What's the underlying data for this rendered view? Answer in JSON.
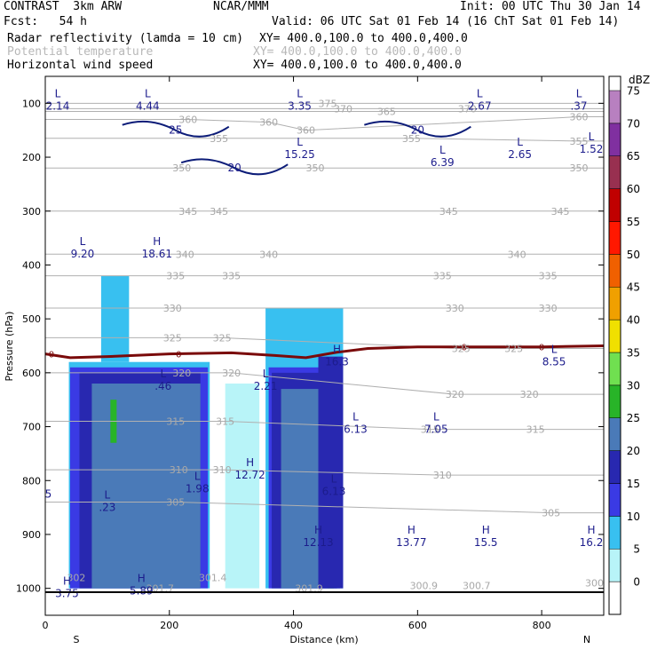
{
  "header": {
    "model_line": "CONTRAST  3km ARW",
    "org": "NCAR/MMM",
    "init": "Init: 00 UTC Thu 30 Jan 14",
    "fcst": "Fcst:   54 h",
    "valid": "Valid: 06 UTC Sat 01 Feb 14 (16 ChT Sat 01 Feb 14)",
    "fields": [
      {
        "name": "Radar reflectivity (lamda = 10 cm)",
        "xy": "XY= 400.0,100.0 to 400.0,400.0",
        "color": "#000000"
      },
      {
        "name": "Potential temperature",
        "xy": "XY= 400.0,100.0 to 400.0,400.0",
        "color": "#b8b8b8"
      },
      {
        "name": "Horizontal wind speed",
        "xy": "XY= 400.0,100.0 to 400.0,400.0",
        "color": "#000000"
      }
    ]
  },
  "chart_data": {
    "type": "heatmap",
    "xlabel": "Distance (km)",
    "ylabel": "Pressure (hPa)",
    "xlim": [
      0,
      900
    ],
    "ylim": [
      1050,
      50
    ],
    "x_ticks": [
      0,
      200,
      400,
      600,
      800
    ],
    "y_ticks": [
      100,
      200,
      300,
      400,
      500,
      600,
      700,
      800,
      900,
      1000
    ],
    "x_end_labels": {
      "left": "S",
      "right": "N"
    },
    "colorbar": {
      "unit": "dBZ",
      "levels": [
        0,
        5,
        10,
        15,
        20,
        25,
        30,
        35,
        40,
        45,
        50,
        55,
        60,
        65,
        70,
        75
      ],
      "colors": [
        "#ffffff",
        "#b8f4f8",
        "#38c0f0",
        "#3a3ae4",
        "#2828b0",
        "#4a7ab8",
        "#28b428",
        "#70e050",
        "#f0e000",
        "#f0a000",
        "#f06000",
        "#ff1800",
        "#c00000",
        "#983050",
        "#8030a0",
        "#b880c0"
      ]
    },
    "reflectivity_regions": [
      {
        "x0": 38,
        "x1": 265,
        "p_top": 580,
        "p_bot": 1000,
        "dbz": 10
      },
      {
        "x0": 40,
        "x1": 262,
        "p_top": 590,
        "p_bot": 1000,
        "dbz": 15
      },
      {
        "x0": 55,
        "x1": 250,
        "p_top": 600,
        "p_bot": 1000,
        "dbz": 20
      },
      {
        "x0": 75,
        "x1": 250,
        "p_top": 620,
        "p_bot": 1000,
        "dbz": 25
      },
      {
        "x0": 105,
        "x1": 115,
        "p_top": 650,
        "p_bot": 730,
        "dbz": 30
      },
      {
        "x0": 90,
        "x1": 135,
        "p_top": 420,
        "p_bot": 580,
        "dbz": 10
      },
      {
        "x0": 290,
        "x1": 345,
        "p_top": 620,
        "p_bot": 1000,
        "dbz": 5
      },
      {
        "x0": 355,
        "x1": 480,
        "p_top": 480,
        "p_bot": 1000,
        "dbz": 10
      },
      {
        "x0": 360,
        "x1": 475,
        "p_top": 590,
        "p_bot": 1000,
        "dbz": 15
      },
      {
        "x0": 365,
        "x1": 470,
        "p_top": 600,
        "p_bot": 1000,
        "dbz": 20
      },
      {
        "x0": 380,
        "x1": 455,
        "p_top": 630,
        "p_bot": 1000,
        "dbz": 25
      },
      {
        "x0": 455,
        "x1": 465,
        "p_top": 630,
        "p_bot": 1000,
        "dbz": 30
      },
      {
        "x0": 440,
        "x1": 480,
        "p_top": 570,
        "p_bot": 1000,
        "dbz": 20
      }
    ],
    "freezing_level": [
      [
        0,
        565
      ],
      [
        40,
        572
      ],
      [
        100,
        570
      ],
      [
        200,
        565
      ],
      [
        300,
        563
      ],
      [
        370,
        568
      ],
      [
        420,
        572
      ],
      [
        470,
        562
      ],
      [
        520,
        555
      ],
      [
        600,
        552
      ],
      [
        700,
        552
      ],
      [
        800,
        552
      ],
      [
        900,
        550
      ]
    ],
    "theta_labels": [
      {
        "x": 480,
        "p": 110,
        "text": "370"
      },
      {
        "x": 550,
        "p": 115,
        "text": "365"
      },
      {
        "x": 680,
        "p": 110,
        "text": "370"
      },
      {
        "x": 860,
        "p": 125,
        "text": "360"
      },
      {
        "x": 455,
        "p": 100,
        "text": "375"
      },
      {
        "x": 230,
        "p": 130,
        "text": "360"
      },
      {
        "x": 360,
        "p": 135,
        "text": "360"
      },
      {
        "x": 420,
        "p": 150,
        "text": "360"
      },
      {
        "x": 280,
        "p": 165,
        "text": "355"
      },
      {
        "x": 590,
        "p": 165,
        "text": "355"
      },
      {
        "x": 860,
        "p": 170,
        "text": "355"
      },
      {
        "x": 220,
        "p": 220,
        "text": "350"
      },
      {
        "x": 435,
        "p": 220,
        "text": "350"
      },
      {
        "x": 860,
        "p": 220,
        "text": "350"
      },
      {
        "x": 230,
        "p": 300,
        "text": "345"
      },
      {
        "x": 280,
        "p": 300,
        "text": "345"
      },
      {
        "x": 650,
        "p": 300,
        "text": "345"
      },
      {
        "x": 830,
        "p": 300,
        "text": "345"
      },
      {
        "x": 225,
        "p": 380,
        "text": "340"
      },
      {
        "x": 360,
        "p": 380,
        "text": "340"
      },
      {
        "x": 760,
        "p": 380,
        "text": "340"
      },
      {
        "x": 210,
        "p": 420,
        "text": "335"
      },
      {
        "x": 300,
        "p": 420,
        "text": "335"
      },
      {
        "x": 640,
        "p": 420,
        "text": "335"
      },
      {
        "x": 810,
        "p": 420,
        "text": "335"
      },
      {
        "x": 205,
        "p": 480,
        "text": "330"
      },
      {
        "x": 660,
        "p": 480,
        "text": "330"
      },
      {
        "x": 810,
        "p": 480,
        "text": "330"
      },
      {
        "x": 205,
        "p": 535,
        "text": "325"
      },
      {
        "x": 285,
        "p": 535,
        "text": "325"
      },
      {
        "x": 670,
        "p": 555,
        "text": "325"
      },
      {
        "x": 755,
        "p": 555,
        "text": "325"
      },
      {
        "x": 220,
        "p": 600,
        "text": "320"
      },
      {
        "x": 300,
        "p": 600,
        "text": "320"
      },
      {
        "x": 660,
        "p": 640,
        "text": "320"
      },
      {
        "x": 780,
        "p": 640,
        "text": "320"
      },
      {
        "x": 210,
        "p": 690,
        "text": "315"
      },
      {
        "x": 290,
        "p": 690,
        "text": "315"
      },
      {
        "x": 620,
        "p": 705,
        "text": "315"
      },
      {
        "x": 790,
        "p": 705,
        "text": "315"
      },
      {
        "x": 215,
        "p": 780,
        "text": "310"
      },
      {
        "x": 285,
        "p": 780,
        "text": "310"
      },
      {
        "x": 640,
        "p": 790,
        "text": "310"
      },
      {
        "x": 210,
        "p": 840,
        "text": "305"
      },
      {
        "x": 815,
        "p": 860,
        "text": "305"
      },
      {
        "x": 50,
        "p": 980,
        "text": "302"
      },
      {
        "x": 270,
        "p": 980,
        "text": "301.4"
      },
      {
        "x": 185,
        "p": 1000,
        "text": "301.7"
      },
      {
        "x": 425,
        "p": 1000,
        "text": "301.9"
      },
      {
        "x": 610,
        "p": 995,
        "text": "300.9"
      },
      {
        "x": 695,
        "p": 995,
        "text": "300.7"
      },
      {
        "x": 885,
        "p": 990,
        "text": "300"
      }
    ],
    "extrema": [
      {
        "x": 20,
        "p": 95,
        "kind": "L",
        "value": "2.14"
      },
      {
        "x": 165,
        "p": 95,
        "kind": "L",
        "value": "4.44"
      },
      {
        "x": 410,
        "p": 95,
        "kind": "L",
        "value": "3.35"
      },
      {
        "x": 700,
        "p": 95,
        "kind": "L",
        "value": "2.67"
      },
      {
        "x": 860,
        "p": 95,
        "kind": "L",
        "value": ".37"
      },
      {
        "x": 410,
        "p": 185,
        "kind": "L",
        "value": "15.25"
      },
      {
        "x": 640,
        "p": 200,
        "kind": "L",
        "value": "6.39"
      },
      {
        "x": 765,
        "p": 185,
        "kind": "L",
        "value": "2.65"
      },
      {
        "x": 880,
        "p": 175,
        "kind": "L",
        "value": "1.52"
      },
      {
        "x": 60,
        "p": 370,
        "kind": "L",
        "value": "9.20"
      },
      {
        "x": 180,
        "p": 370,
        "kind": "H",
        "value": "18.61"
      },
      {
        "x": 190,
        "p": 615,
        "kind": "L",
        "value": ".46"
      },
      {
        "x": 355,
        "p": 615,
        "kind": "L",
        "value": "2.21"
      },
      {
        "x": 470,
        "p": 570,
        "kind": "H",
        "value": "16.3"
      },
      {
        "x": 820,
        "p": 570,
        "kind": "L",
        "value": "8.55"
      },
      {
        "x": 500,
        "p": 695,
        "kind": "L",
        "value": "6.13"
      },
      {
        "x": 630,
        "p": 695,
        "kind": "L",
        "value": "7.05"
      },
      {
        "x": 330,
        "p": 780,
        "kind": "H",
        "value": "12.72"
      },
      {
        "x": 245,
        "p": 805,
        "kind": "L",
        "value": "1.98"
      },
      {
        "x": 100,
        "p": 840,
        "kind": "L",
        "value": ".23"
      },
      {
        "x": 465,
        "p": 810,
        "kind": "L",
        "value": "6.13"
      },
      {
        "x": 5,
        "p": 815,
        "kind": "",
        "value": "5"
      },
      {
        "x": 440,
        "p": 905,
        "kind": "H",
        "value": "12.13"
      },
      {
        "x": 590,
        "p": 905,
        "kind": "H",
        "value": "13.77"
      },
      {
        "x": 710,
        "p": 905,
        "kind": "H",
        "value": "15.5"
      },
      {
        "x": 880,
        "p": 905,
        "kind": "H",
        "value": "16.2"
      },
      {
        "x": 35,
        "p": 1000,
        "kind": "H",
        "value": "3.75"
      },
      {
        "x": 155,
        "p": 995,
        "kind": "H",
        "value": "5.89"
      }
    ],
    "wind_contour_labels": [
      {
        "x": 210,
        "p": 150,
        "text": "25"
      },
      {
        "x": 600,
        "p": 150,
        "text": "20"
      },
      {
        "x": 305,
        "p": 220,
        "text": "20"
      }
    ],
    "freezing_labels": [
      {
        "x": 10,
        "p": 565,
        "text": "0"
      },
      {
        "x": 215,
        "p": 565,
        "text": "0"
      },
      {
        "x": 675,
        "p": 552,
        "text": "0"
      },
      {
        "x": 800,
        "p": 552,
        "text": "0"
      }
    ]
  }
}
